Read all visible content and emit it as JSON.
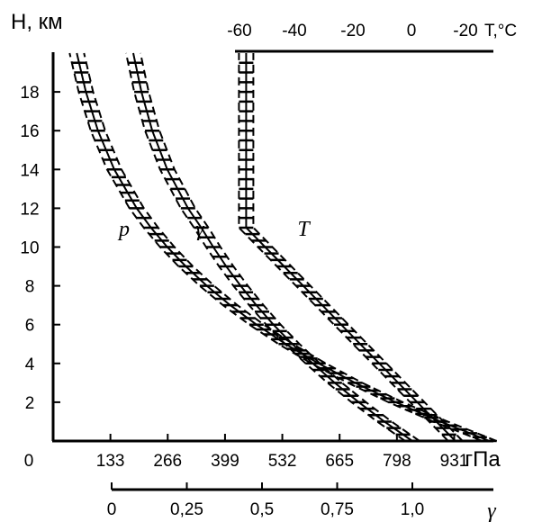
{
  "chart_data": {
    "type": "line",
    "ylabel": "H, км",
    "y_ticks": [
      "2",
      "4",
      "6",
      "8",
      "10",
      "12",
      "14",
      "16",
      "18"
    ],
    "y_zero_label": "0",
    "x_pressure_label": "гПа",
    "x_pressure_ticks": [
      "133",
      "266",
      "399",
      "532",
      "665",
      "798",
      "931"
    ],
    "x_temperature_label": "T,°C",
    "x_temperature_ticks": [
      "-60",
      "-40",
      "-20",
      "0",
      "-20"
    ],
    "x_density_label": "γ",
    "x_density_ticks": [
      "0",
      "0,25",
      "0,5",
      "0,75",
      "1,0"
    ],
    "ylim": [
      0,
      20
    ],
    "series": [
      {
        "name": "p",
        "unit": "гПа",
        "points": [
          [
            1013,
            0
          ],
          [
            899,
            1
          ],
          [
            795,
            2
          ],
          [
            701,
            3
          ],
          [
            616,
            4
          ],
          [
            540,
            5
          ],
          [
            472,
            6
          ],
          [
            411,
            7
          ],
          [
            357,
            8
          ],
          [
            308,
            9
          ],
          [
            265,
            10
          ],
          [
            227,
            11
          ],
          [
            194,
            12
          ],
          [
            142,
            14
          ],
          [
            104,
            16
          ],
          [
            76,
            18
          ],
          [
            55,
            20
          ]
        ]
      },
      {
        "name": "γ",
        "unit": "",
        "points": [
          [
            1.0,
            0
          ],
          [
            0.907,
            1
          ],
          [
            0.822,
            2
          ],
          [
            0.742,
            3
          ],
          [
            0.669,
            4
          ],
          [
            0.601,
            5
          ],
          [
            0.538,
            6
          ],
          [
            0.481,
            7
          ],
          [
            0.429,
            8
          ],
          [
            0.381,
            9
          ],
          [
            0.338,
            10
          ],
          [
            0.298,
            11
          ],
          [
            0.254,
            12
          ],
          [
            0.185,
            14
          ],
          [
            0.135,
            16
          ],
          [
            0.099,
            18
          ],
          [
            0.072,
            20
          ]
        ]
      },
      {
        "name": "T",
        "unit": "°C",
        "points": [
          [
            15,
            0
          ],
          [
            8.5,
            1
          ],
          [
            2,
            2
          ],
          [
            -4.5,
            3
          ],
          [
            -11,
            4
          ],
          [
            -17.5,
            5
          ],
          [
            -24,
            6
          ],
          [
            -30.5,
            7
          ],
          [
            -37,
            8
          ],
          [
            -43.5,
            9
          ],
          [
            -50,
            10
          ],
          [
            -56.5,
            11
          ],
          [
            -56.5,
            12
          ],
          [
            -56.5,
            14
          ],
          [
            -56.5,
            16
          ],
          [
            -56.5,
            18
          ],
          [
            -56.5,
            20
          ]
        ]
      }
    ]
  }
}
